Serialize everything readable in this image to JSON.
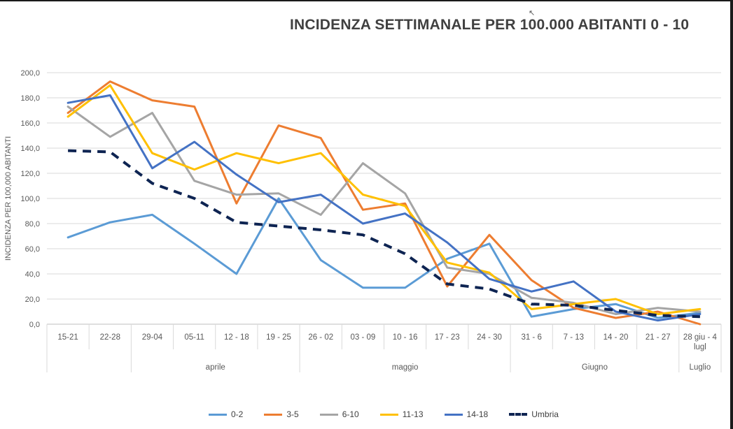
{
  "title": "INCIDENZA SETTIMANALE PER 100.000 ABITANTI 0 - 10",
  "chart_data": {
    "type": "line",
    "title": "INCIDENZA SETTIMANALE PER 100.000 ABITANTI 0 - 10",
    "ylabel": "INCIDENZA PER 100,000 ABITANTI",
    "ylim": [
      0,
      200
    ],
    "yticks": [
      "0,0",
      "20,0",
      "40,0",
      "60,0",
      "80,0",
      "100,0",
      "120,0",
      "140,0",
      "160,0",
      "180,0",
      "200,0"
    ],
    "grid": true,
    "legend_position": "bottom",
    "categories": [
      "15-21",
      "22-28",
      "29-04",
      "05-11",
      "12 - 18",
      "19 - 25",
      "26 - 02",
      "03 - 09",
      "10 - 16",
      "17 - 23",
      "24 - 30",
      "31 - 6",
      "7 - 13",
      "14 - 20",
      "21 - 27",
      "28 giu - 4 lugl"
    ],
    "month_groups": [
      {
        "label": "",
        "span": 2
      },
      {
        "label": "aprile",
        "span": 4
      },
      {
        "label": "maggio",
        "span": 5
      },
      {
        "label": "Giugno",
        "span": 4
      },
      {
        "label": "Luglio",
        "span": 1
      }
    ],
    "series": [
      {
        "name": "0-2",
        "color": "#5b9bd5",
        "dashed": false,
        "values": [
          69,
          81,
          87,
          64,
          40,
          100,
          51,
          29,
          29,
          52,
          64,
          6,
          12,
          16,
          5,
          9
        ]
      },
      {
        "name": "3-5",
        "color": "#ed7d31",
        "dashed": false,
        "values": [
          168,
          193,
          178,
          173,
          96,
          158,
          148,
          91,
          96,
          30,
          71,
          35,
          13,
          5,
          10,
          0
        ]
      },
      {
        "name": "6-10",
        "color": "#a5a5a5",
        "dashed": false,
        "values": [
          173,
          149,
          168,
          114,
          103,
          104,
          87,
          128,
          104,
          45,
          40,
          21,
          17,
          8,
          13,
          10
        ]
      },
      {
        "name": "11-13",
        "color": "#ffc000",
        "dashed": false,
        "values": [
          165,
          190,
          136,
          123,
          136,
          128,
          136,
          103,
          94,
          49,
          41,
          12,
          16,
          20,
          8,
          12
        ]
      },
      {
        "name": "14-18",
        "color": "#4472c4",
        "dashed": false,
        "values": [
          176,
          182,
          124,
          145,
          119,
          97,
          103,
          80,
          88,
          65,
          36,
          26,
          34,
          10,
          3,
          8
        ]
      },
      {
        "name": "Umbria",
        "color": "#0e2452",
        "dashed": true,
        "values": [
          138,
          137,
          112,
          100,
          81,
          78,
          75,
          71,
          56,
          32,
          28,
          16,
          15,
          11,
          7,
          6
        ]
      }
    ]
  }
}
